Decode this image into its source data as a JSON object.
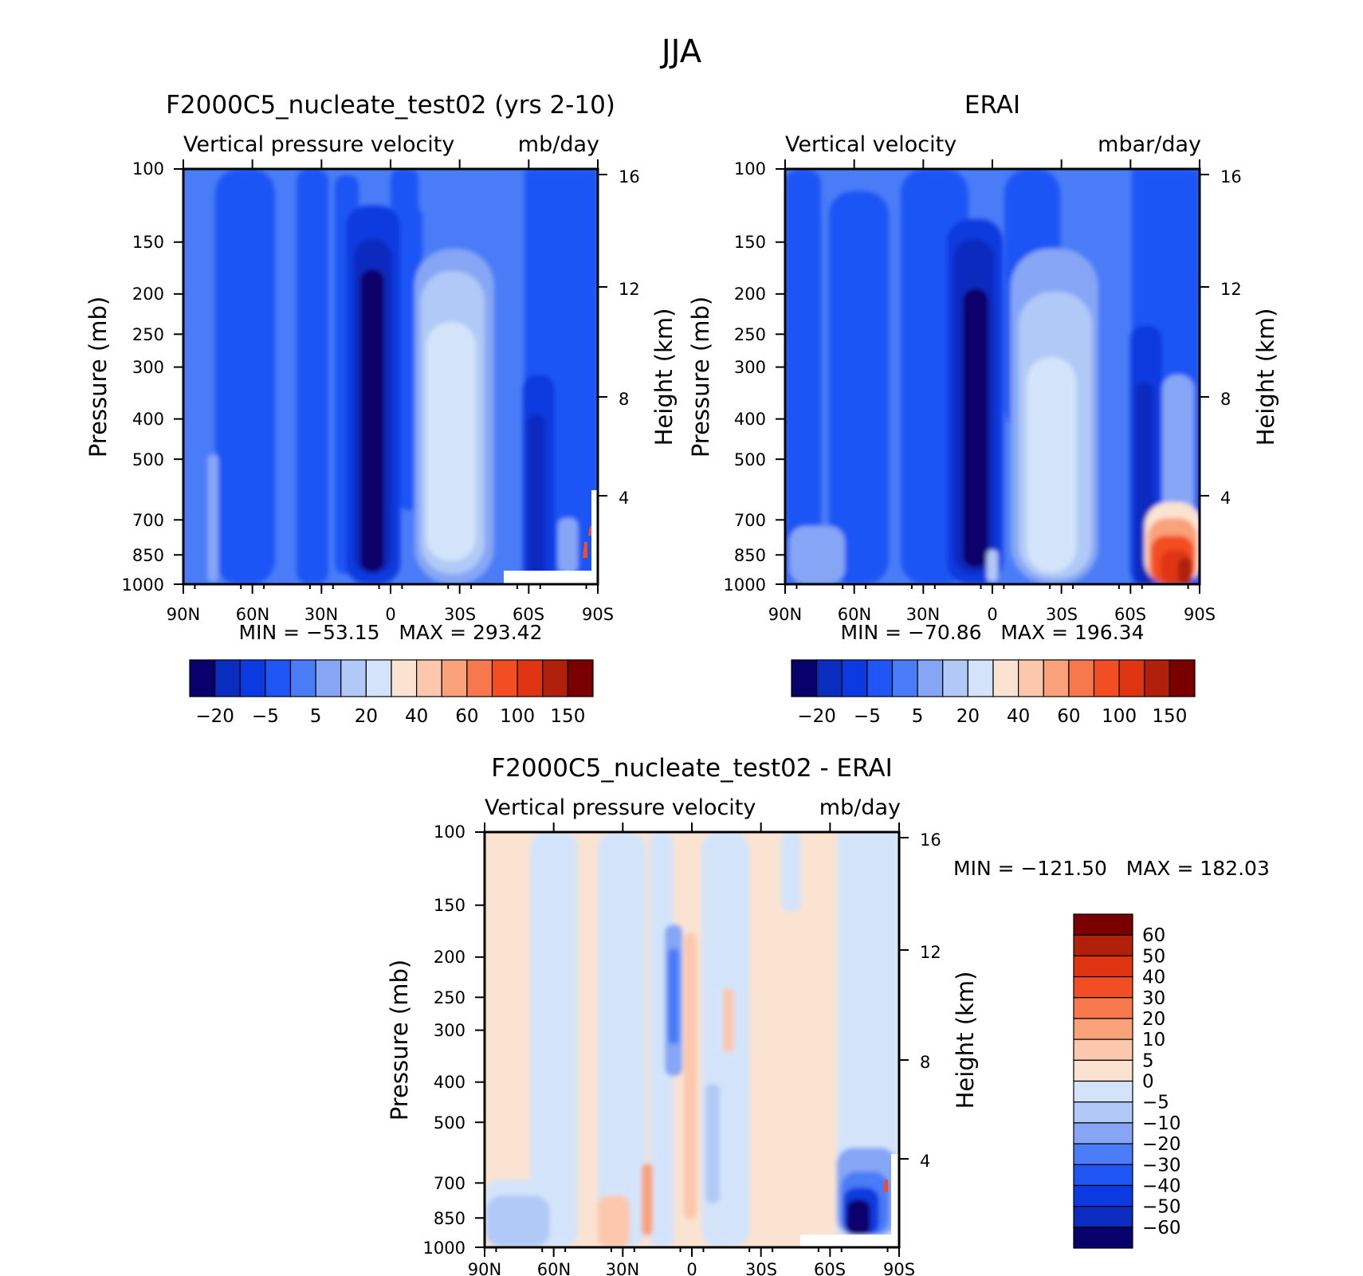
{
  "figure": {
    "title": "JJA"
  },
  "chart_data": [
    {
      "type": "heatmap",
      "panel": "model",
      "title": "F2000C5_nucleate_test02 (yrs 2-10)",
      "subtitle_left": "Vertical pressure velocity",
      "subtitle_right": "mb/day",
      "xlabel": "",
      "ylabel": "Pressure (mb)",
      "ylabel_right": "Height (km)",
      "x_ticks": [
        "90N",
        "60N",
        "30N",
        "0",
        "30S",
        "60S",
        "90S"
      ],
      "y_ticks": [
        100,
        150,
        200,
        250,
        300,
        400,
        500,
        700,
        850,
        1000
      ],
      "y_ticks_right": [
        16,
        12,
        8,
        4
      ],
      "y_scale": "log-pressure",
      "min_max_text": "MIN = −53.15   MAX = 293.42",
      "stats": {
        "min": -53.15,
        "max": 293.42
      },
      "colorbar": {
        "levels": [
          "−20",
          "−5",
          "5",
          "20",
          "40",
          "60",
          "100",
          "150"
        ],
        "colors": [
          "#08006b",
          "#0a2cbf",
          "#0b3be0",
          "#1f55f5",
          "#4a7cf7",
          "#86a6f5",
          "#b1c9f6",
          "#d3e4fa",
          "#fbe3d2",
          "#fbc8ad",
          "#f9a27a",
          "#f7784c",
          "#f34d24",
          "#df3412",
          "#b0200a",
          "#7a0000"
        ]
      },
      "features": [
        {
          "name": "strong ascent core",
          "lat": "~5N",
          "levels": "200-1000 mb",
          "value": "< -20"
        },
        {
          "name": "subsidence band",
          "lat": "~15S-25S",
          "levels": "150-850 mb",
          "value": "5 to 20"
        },
        {
          "name": "ascent",
          "lat": "~60S",
          "levels": "400-1000 mb",
          "value": "< -5"
        },
        {
          "name": "strong positive",
          "lat": "~85S",
          "levels": "700-850 mb",
          "value": "> 100"
        }
      ]
    },
    {
      "type": "heatmap",
      "panel": "obs",
      "title": "ERAI",
      "subtitle_left": "Vertical velocity",
      "subtitle_right": "mbar/day",
      "ylabel": "Pressure (mb)",
      "ylabel_right": "Height (km)",
      "x_ticks": [
        "90N",
        "60N",
        "30N",
        "0",
        "30S",
        "60S",
        "90S"
      ],
      "y_ticks": [
        100,
        150,
        200,
        250,
        300,
        400,
        500,
        700,
        850,
        1000
      ],
      "y_ticks_right": [
        16,
        12,
        8,
        4
      ],
      "y_scale": "log-pressure",
      "min_max_text": "MIN = −70.86   MAX = 196.34",
      "stats": {
        "min": -70.86,
        "max": 196.34
      },
      "colorbar": {
        "levels": [
          "−20",
          "−5",
          "5",
          "20",
          "40",
          "60",
          "100",
          "150"
        ],
        "colors": [
          "#08006b",
          "#0a2cbf",
          "#0b3be0",
          "#1f55f5",
          "#4a7cf7",
          "#86a6f5",
          "#b1c9f6",
          "#d3e4fa",
          "#fbe3d2",
          "#fbc8ad",
          "#f9a27a",
          "#f7784c",
          "#f34d24",
          "#df3412",
          "#b0200a",
          "#7a0000"
        ]
      },
      "features": [
        {
          "name": "strong ascent core",
          "lat": "~5N",
          "levels": "200-1000 mb",
          "value": "< -20"
        },
        {
          "name": "subsidence band",
          "lat": "~20S",
          "levels": "200-850 mb",
          "value": "5 to 20"
        },
        {
          "name": "ascent",
          "lat": "~60S",
          "levels": "350-1000 mb",
          "value": "< -5"
        },
        {
          "name": "strong positive",
          "lat": "~75S-90S",
          "levels": "600-1000 mb",
          "value": "40 to 150"
        }
      ]
    },
    {
      "type": "heatmap",
      "panel": "diff",
      "title": "F2000C5_nucleate_test02 - ERAI",
      "subtitle_left": "Vertical pressure velocity",
      "subtitle_right": "mb/day",
      "ylabel": "Pressure (mb)",
      "ylabel_right": "Height (km)",
      "x_ticks": [
        "90N",
        "60N",
        "30N",
        "0",
        "30S",
        "60S",
        "90S"
      ],
      "y_ticks": [
        100,
        150,
        200,
        250,
        300,
        400,
        500,
        700,
        850,
        1000
      ],
      "y_ticks_right": [
        16,
        12,
        8,
        4
      ],
      "y_scale": "log-pressure",
      "min_max_text": "MIN = −121.50   MAX = 182.03",
      "stats": {
        "min": -121.5,
        "max": 182.03
      },
      "colorbar": {
        "levels": [
          "60",
          "50",
          "40",
          "30",
          "20",
          "10",
          "5",
          "0",
          "−5",
          "−10",
          "−20",
          "−30",
          "−40",
          "−50",
          "−60"
        ],
        "colors": [
          "#7a0000",
          "#b0200a",
          "#df3412",
          "#f34d24",
          "#f7784c",
          "#f9a27a",
          "#fbc8ad",
          "#fbe3d2",
          "#d3e4fa",
          "#b1c9f6",
          "#86a6f5",
          "#4a7cf7",
          "#1f55f5",
          "#0b3be0",
          "#0a2cbf",
          "#08006b"
        ]
      },
      "features": [
        {
          "name": "weak negative bands",
          "lat": "~70N, ~40N, ~10N, ~35S, ~65S",
          "levels": "100-1000 mb",
          "value": "-5 to 0"
        },
        {
          "name": "negative streak",
          "lat": "~5N",
          "levels": "200-400 mb",
          "value": "-20 to -10"
        },
        {
          "name": "positive streak",
          "lat": "~0",
          "levels": "200-850 mb",
          "value": "5 to 10"
        },
        {
          "name": "strong negative",
          "lat": "~75S-85S",
          "levels": "600-1000 mb",
          "value": "< -40"
        }
      ]
    }
  ]
}
